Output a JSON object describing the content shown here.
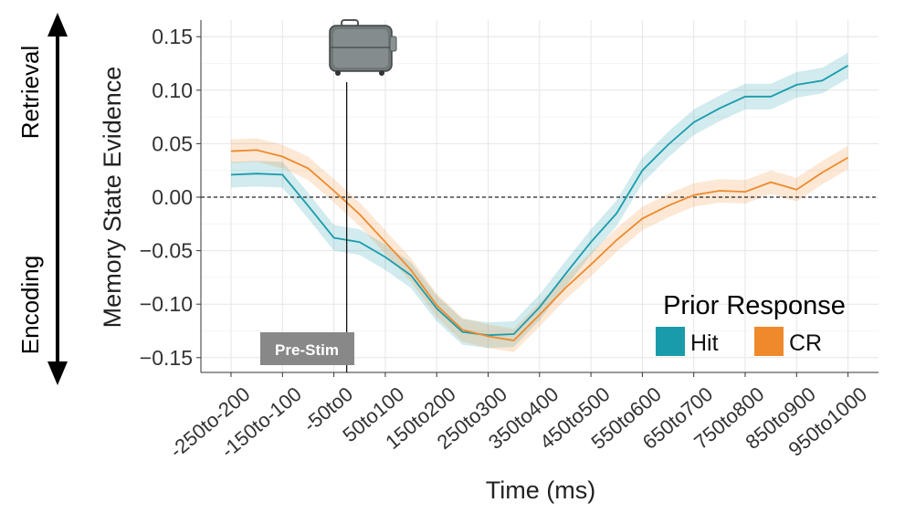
{
  "chart_data": {
    "type": "line",
    "title": "",
    "xlabel": "Time (ms)",
    "ylabel": "Memory State Evidence",
    "ylim": [
      -0.16,
      0.16
    ],
    "yticks": [
      -0.15,
      -0.1,
      -0.05,
      0.0,
      0.05,
      0.1,
      0.15
    ],
    "ytick_labels": [
      "−0.15",
      "−0.10",
      "−0.05",
      "0.00",
      "0.05",
      "0.10",
      "0.15"
    ],
    "categories": [
      "-250to-200",
      "-200to-150",
      "-150to-100",
      "-100to-50",
      "-50to0",
      "0to50",
      "50to100",
      "100to150",
      "150to200",
      "200to250",
      "250to300",
      "300to350",
      "350to400",
      "400to450",
      "450to500",
      "500to550",
      "550to600",
      "600to650",
      "650to700",
      "700to750",
      "750to800",
      "800to850",
      "850to900",
      "900to950",
      "950to1000"
    ],
    "x_tick_labels": [
      "-250to-200",
      "-150to-100",
      "-50to0",
      "50to100",
      "150to200",
      "250to300",
      "350to400",
      "450to500",
      "550to600",
      "650to700",
      "750to800",
      "850to900",
      "950to1000"
    ],
    "grid": true,
    "zero_line": "dashed",
    "series": [
      {
        "name": "Hit",
        "color": "#1a9bab",
        "values": [
          0.021,
          0.022,
          0.021,
          -0.008,
          -0.038,
          -0.042,
          -0.056,
          -0.073,
          -0.104,
          -0.126,
          -0.129,
          -0.128,
          -0.103,
          -0.072,
          -0.042,
          -0.015,
          0.025,
          0.049,
          0.07,
          0.083,
          0.094,
          0.094,
          0.105,
          0.109,
          0.123
        ],
        "ci_halfwidth": 0.012
      },
      {
        "name": "CR",
        "color": "#ef8a2c",
        "values": [
          0.043,
          0.044,
          0.038,
          0.027,
          0.006,
          -0.016,
          -0.042,
          -0.068,
          -0.101,
          -0.124,
          -0.13,
          -0.134,
          -0.11,
          -0.085,
          -0.063,
          -0.04,
          -0.02,
          -0.008,
          0.002,
          0.006,
          0.005,
          0.014,
          0.007,
          0.023,
          0.037
        ],
        "ci_halfwidth": 0.011
      }
    ],
    "legend": {
      "title": "Prior Response",
      "placement": "bottom-right",
      "entries": [
        "Hit",
        "CR"
      ]
    },
    "annotations": {
      "stimulus_onset_label": "Pre-Stim",
      "stimulus_icon": "suitcase-icon",
      "upper_side_label": "Retrieval",
      "lower_side_label": "Encoding"
    }
  }
}
